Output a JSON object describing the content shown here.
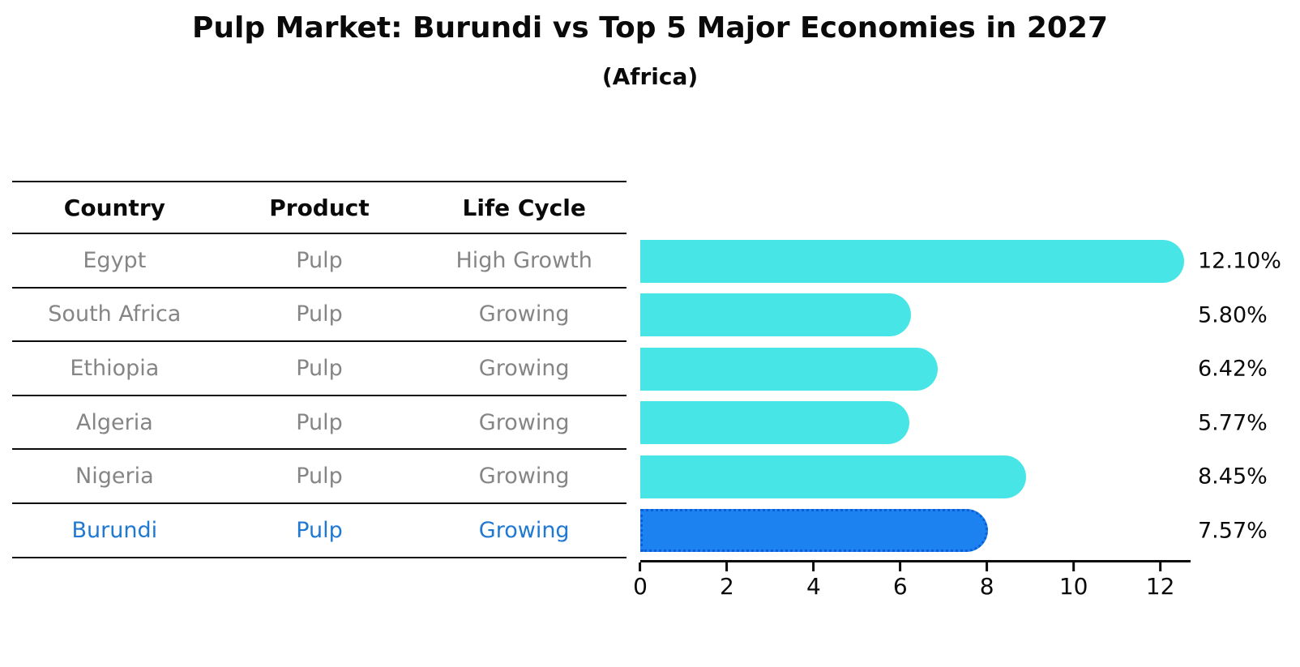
{
  "title": "Pulp Market: Burundi vs Top 5 Major Economies in 2027",
  "subtitle": "(Africa)",
  "table": {
    "headers": [
      "Country",
      "Product",
      "Life Cycle"
    ],
    "rows": [
      {
        "country": "Egypt",
        "product": "Pulp",
        "life_cycle": "High Growth",
        "highlight": false
      },
      {
        "country": "South Africa",
        "product": "Pulp",
        "life_cycle": "Growing",
        "highlight": false
      },
      {
        "country": "Ethiopia",
        "product": "Pulp",
        "life_cycle": "Growing",
        "highlight": false
      },
      {
        "country": "Algeria",
        "product": "Pulp",
        "life_cycle": "Growing",
        "highlight": false
      },
      {
        "country": "Nigeria",
        "product": "Pulp",
        "life_cycle": "Growing",
        "highlight": false
      },
      {
        "country": "Burundi",
        "product": "Pulp",
        "life_cycle": "Growing",
        "highlight": true
      }
    ]
  },
  "chart_data": {
    "type": "bar",
    "orientation": "horizontal",
    "title": "Pulp Market: Burundi vs Top 5 Major Economies in 2027 (Africa)",
    "xlabel": "",
    "ylabel": "",
    "categories": [
      "Egypt",
      "South Africa",
      "Ethiopia",
      "Algeria",
      "Nigeria",
      "Burundi"
    ],
    "values": [
      12.1,
      5.8,
      6.42,
      5.77,
      8.45,
      7.57
    ],
    "value_labels": [
      "12.10%",
      "5.80%",
      "6.42%",
      "5.77%",
      "8.45%",
      "7.57%"
    ],
    "xticks": [
      0,
      2,
      4,
      6,
      8,
      10,
      12
    ],
    "xlim": [
      0,
      12.7
    ],
    "grid": false,
    "legend": false,
    "highlight_index": 5
  },
  "colors": {
    "bar_color": "#48e5e6",
    "highlight_bar_color": "#1c82f0",
    "highlight_bar_border": "#0b5ed7",
    "highlight_text": "#1f78d1",
    "row_text": "#858585",
    "axis_and_text": "#0a0a0a"
  }
}
